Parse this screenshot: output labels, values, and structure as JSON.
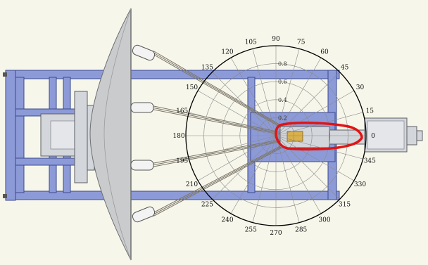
{
  "colors": {
    "background": "#f6f6ea",
    "frame_fill": "#8d9ad8",
    "frame_edge": "#3a4a90",
    "dish_fill": "#c9cbcc",
    "dish_edge": "#6e7072",
    "panel_fill": "#d3d6da",
    "polar_grid": "#8a8a8a",
    "polar_outline": "#000000",
    "highlight": "#e01515",
    "feed_brass": "#d9b04a"
  },
  "icons": {
    "dish": "parabolic-dish-icon",
    "feed": "feed-horn-icon",
    "mount": "mount-plate-icon"
  },
  "polar": {
    "angle_labels": [
      "0",
      "15",
      "30",
      "45",
      "60",
      "75",
      "90",
      "105",
      "120",
      "135",
      "150",
      "165",
      "180",
      "195",
      "210",
      "225",
      "240",
      "255",
      "270",
      "285",
      "300",
      "315",
      "330",
      "345"
    ],
    "radius_labels": [
      "0.2",
      "0.4",
      "0.6",
      "0.8"
    ],
    "radius_values": [
      0.2,
      0.4,
      0.6,
      0.8
    ],
    "max_radius": 1.0,
    "angle_step_deg": 15
  }
}
